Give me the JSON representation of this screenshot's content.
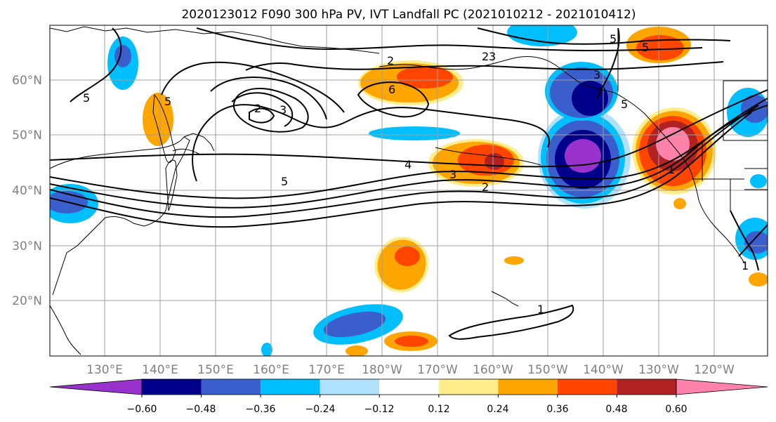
{
  "title": "2020123012 F090 300 hPa PV, IVT Landfall PC (2021010212 - 2021010412)",
  "lat_labels": [
    "60°N",
    "50°N",
    "40°N",
    "30°N",
    "20°N"
  ],
  "lon_labels": [
    "130°E",
    "140°E",
    "150°E",
    "160°E",
    "170°E",
    "180°W",
    "170°W",
    "160°W",
    "150°W",
    "140°W",
    "130°W",
    "120°W"
  ],
  "colorbar": {
    "ticks": [
      "−0.60",
      "−0.48",
      "−0.36",
      "−0.24",
      "−0.12",
      "0.12",
      "0.24",
      "0.36",
      "0.48",
      "0.60"
    ],
    "colors": [
      "#9932cc",
      "#00008b",
      "#3a5fcd",
      "#00bfff",
      "#b0e2ff",
      "#ffffff",
      "#ffec8b",
      "#ffa500",
      "#ff4500",
      "#b22222",
      "#ff82ab"
    ]
  },
  "contour_labels": [
    "5",
    "5",
    "5",
    "5",
    "5",
    "5",
    "2",
    "3",
    "3",
    "2",
    "2",
    "3",
    "6",
    "4",
    "3",
    "2",
    "1",
    "1",
    "1"
  ]
}
